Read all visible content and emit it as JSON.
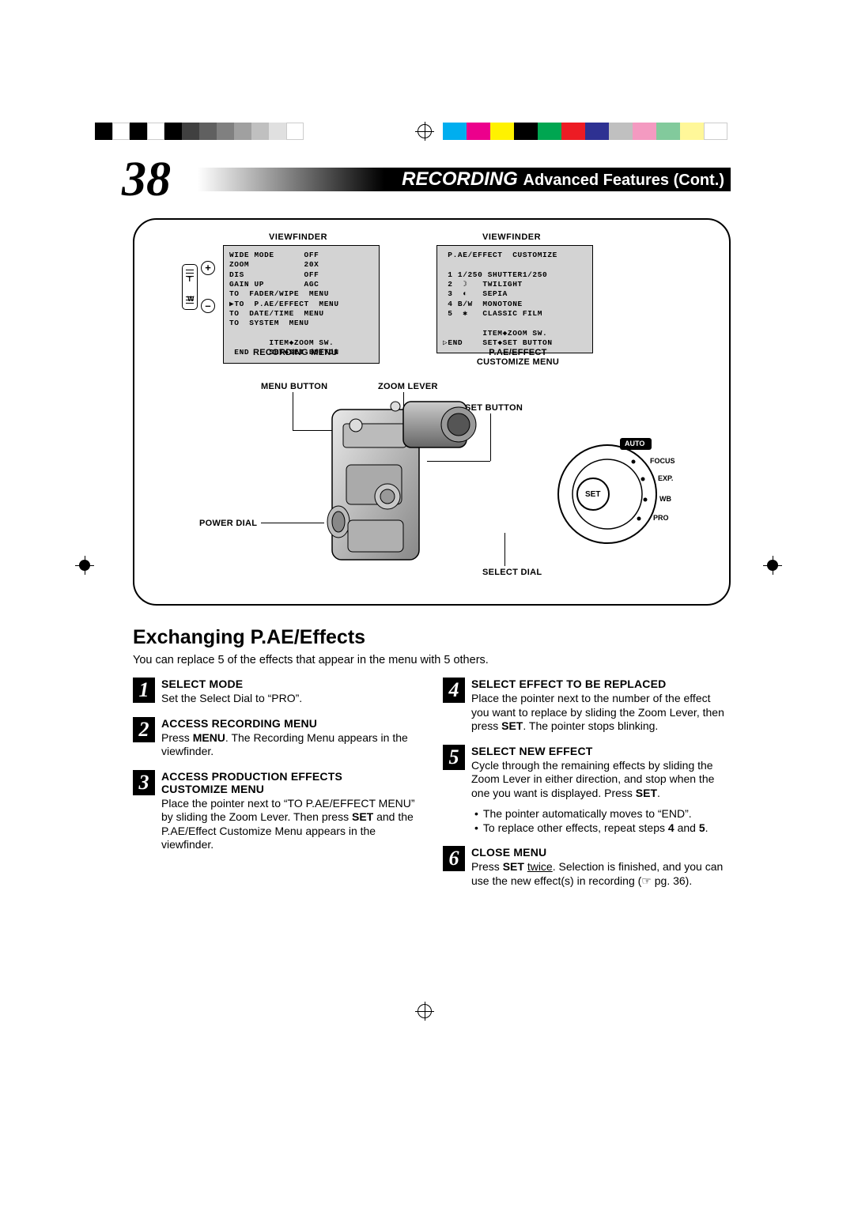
{
  "reg": {
    "left_swatches": [
      "#000000",
      "#ffffff",
      "#000000",
      "#ffffff",
      "#000000",
      "#404040",
      "#606060",
      "#808080",
      "#a0a0a0",
      "#c0c0c0",
      "#e0e0e0",
      "#ffffff"
    ],
    "right_swatches": [
      "#00aeef",
      "#ec008c",
      "#fff200",
      "#000000",
      "#00a651",
      "#ed1c24",
      "#2e3192",
      "#c0c0c0",
      "#f49ac1",
      "#82ca9c",
      "#fff799",
      "#ffffff"
    ]
  },
  "page_number": "38",
  "header": {
    "recording": "RECORDING",
    "subtitle": "Advanced Features (Cont.)"
  },
  "diagram": {
    "viewfinder_label": "VIEWFINDER",
    "recording_menu_label": "RECORDING MENU",
    "pae_effect_label_l1": "P.AE/EFFECT",
    "pae_effect_label_l2": "CUSTOMIZE MENU",
    "rec_menu_lines": "WIDE MODE      OFF\nZOOM           20X\nDIS            OFF\nGAIN UP        AGC\nTO  FADER/WIPE  MENU\n▶TO  P.AE/EFFECT  MENU\nTO  DATE/TIME  MENU\nTO  SYSTEM  MENU\n\n        ITEM◆ZOOM SW.\n END    SET◆SET BUTTON",
    "pae_menu_lines": " P.AE/EFFECT  CUSTOMIZE\n\n 1 1/250 SHUTTER1/250\n 2  ☽   TWILIGHT\n 3  ◐   SEPIA\n 4 B/W  MONOTONE\n 5  ✱   CLASSIC FILM\n\n        ITEM◆ZOOM SW.\n▷END    SET◆SET BUTTON",
    "labels": {
      "menu_button": "MENU BUTTON",
      "zoom_lever": "ZOOM LEVER",
      "set_button": "SET BUTTON",
      "power_dial": "POWER DIAL",
      "select_dial": "SELECT DIAL"
    },
    "dial": {
      "auto": "AUTO",
      "focus": "FOCUS",
      "exp": "EXP.",
      "wb": "WB",
      "pro": "PRO",
      "set": "SET"
    },
    "zoom_sw": {
      "t": "T",
      "w": "W",
      "plus": "+",
      "minus": "–"
    }
  },
  "section_title": "Exchanging P.AE/Effects",
  "intro": "You can replace 5 of the effects that appear in the menu with 5 others.",
  "steps": {
    "s1": {
      "n": "1",
      "h": "SELECT MODE",
      "body": "Set the Select Dial to “PRO”."
    },
    "s2": {
      "n": "2",
      "h": "ACCESS RECORDING MENU",
      "pre": "Press ",
      "b1": "MENU",
      "post": ". The Recording Menu appears in the viewfinder."
    },
    "s3": {
      "n": "3",
      "h1": "ACCESS PRODUCTION EFFECTS",
      "h2": "CUSTOMIZE MENU",
      "pre": "Place the pointer next to “TO P.AE/EFFECT MENU” by sliding the Zoom Lever. Then press ",
      "b1": "SET",
      "post": " and the P.AE/Effect Customize Menu appears in the viewfinder."
    },
    "s4": {
      "n": "4",
      "h": "SELECT EFFECT TO BE REPLACED",
      "pre": "Place the pointer next to the number of the effect you want to replace by sliding the Zoom Lever, then press ",
      "b1": "SET",
      "post": ". The pointer stops blinking."
    },
    "s5": {
      "n": "5",
      "h": "SELECT NEW EFFECT",
      "pre": "Cycle through the remaining effects by sliding the Zoom Lever in either direction, and stop when the one you want is displayed. Press ",
      "b1": "SET",
      "post2": ".",
      "bullet1": "The pointer automatically moves to “END”.",
      "bullet2_pre": "To replace other effects, repeat steps ",
      "bullet2_b4": "4",
      "bullet2_and": " and ",
      "bullet2_b5": "5",
      "bullet2_post": "."
    },
    "s6": {
      "n": "6",
      "h": "CLOSE MENU",
      "pre": "Press ",
      "b1": "SET",
      "u1": "twice",
      "mid": ". Selection is finished, and you can use the new effect(s) in recording (",
      "ref": "☞",
      "pg": " pg. 36).",
      "space": " "
    }
  }
}
